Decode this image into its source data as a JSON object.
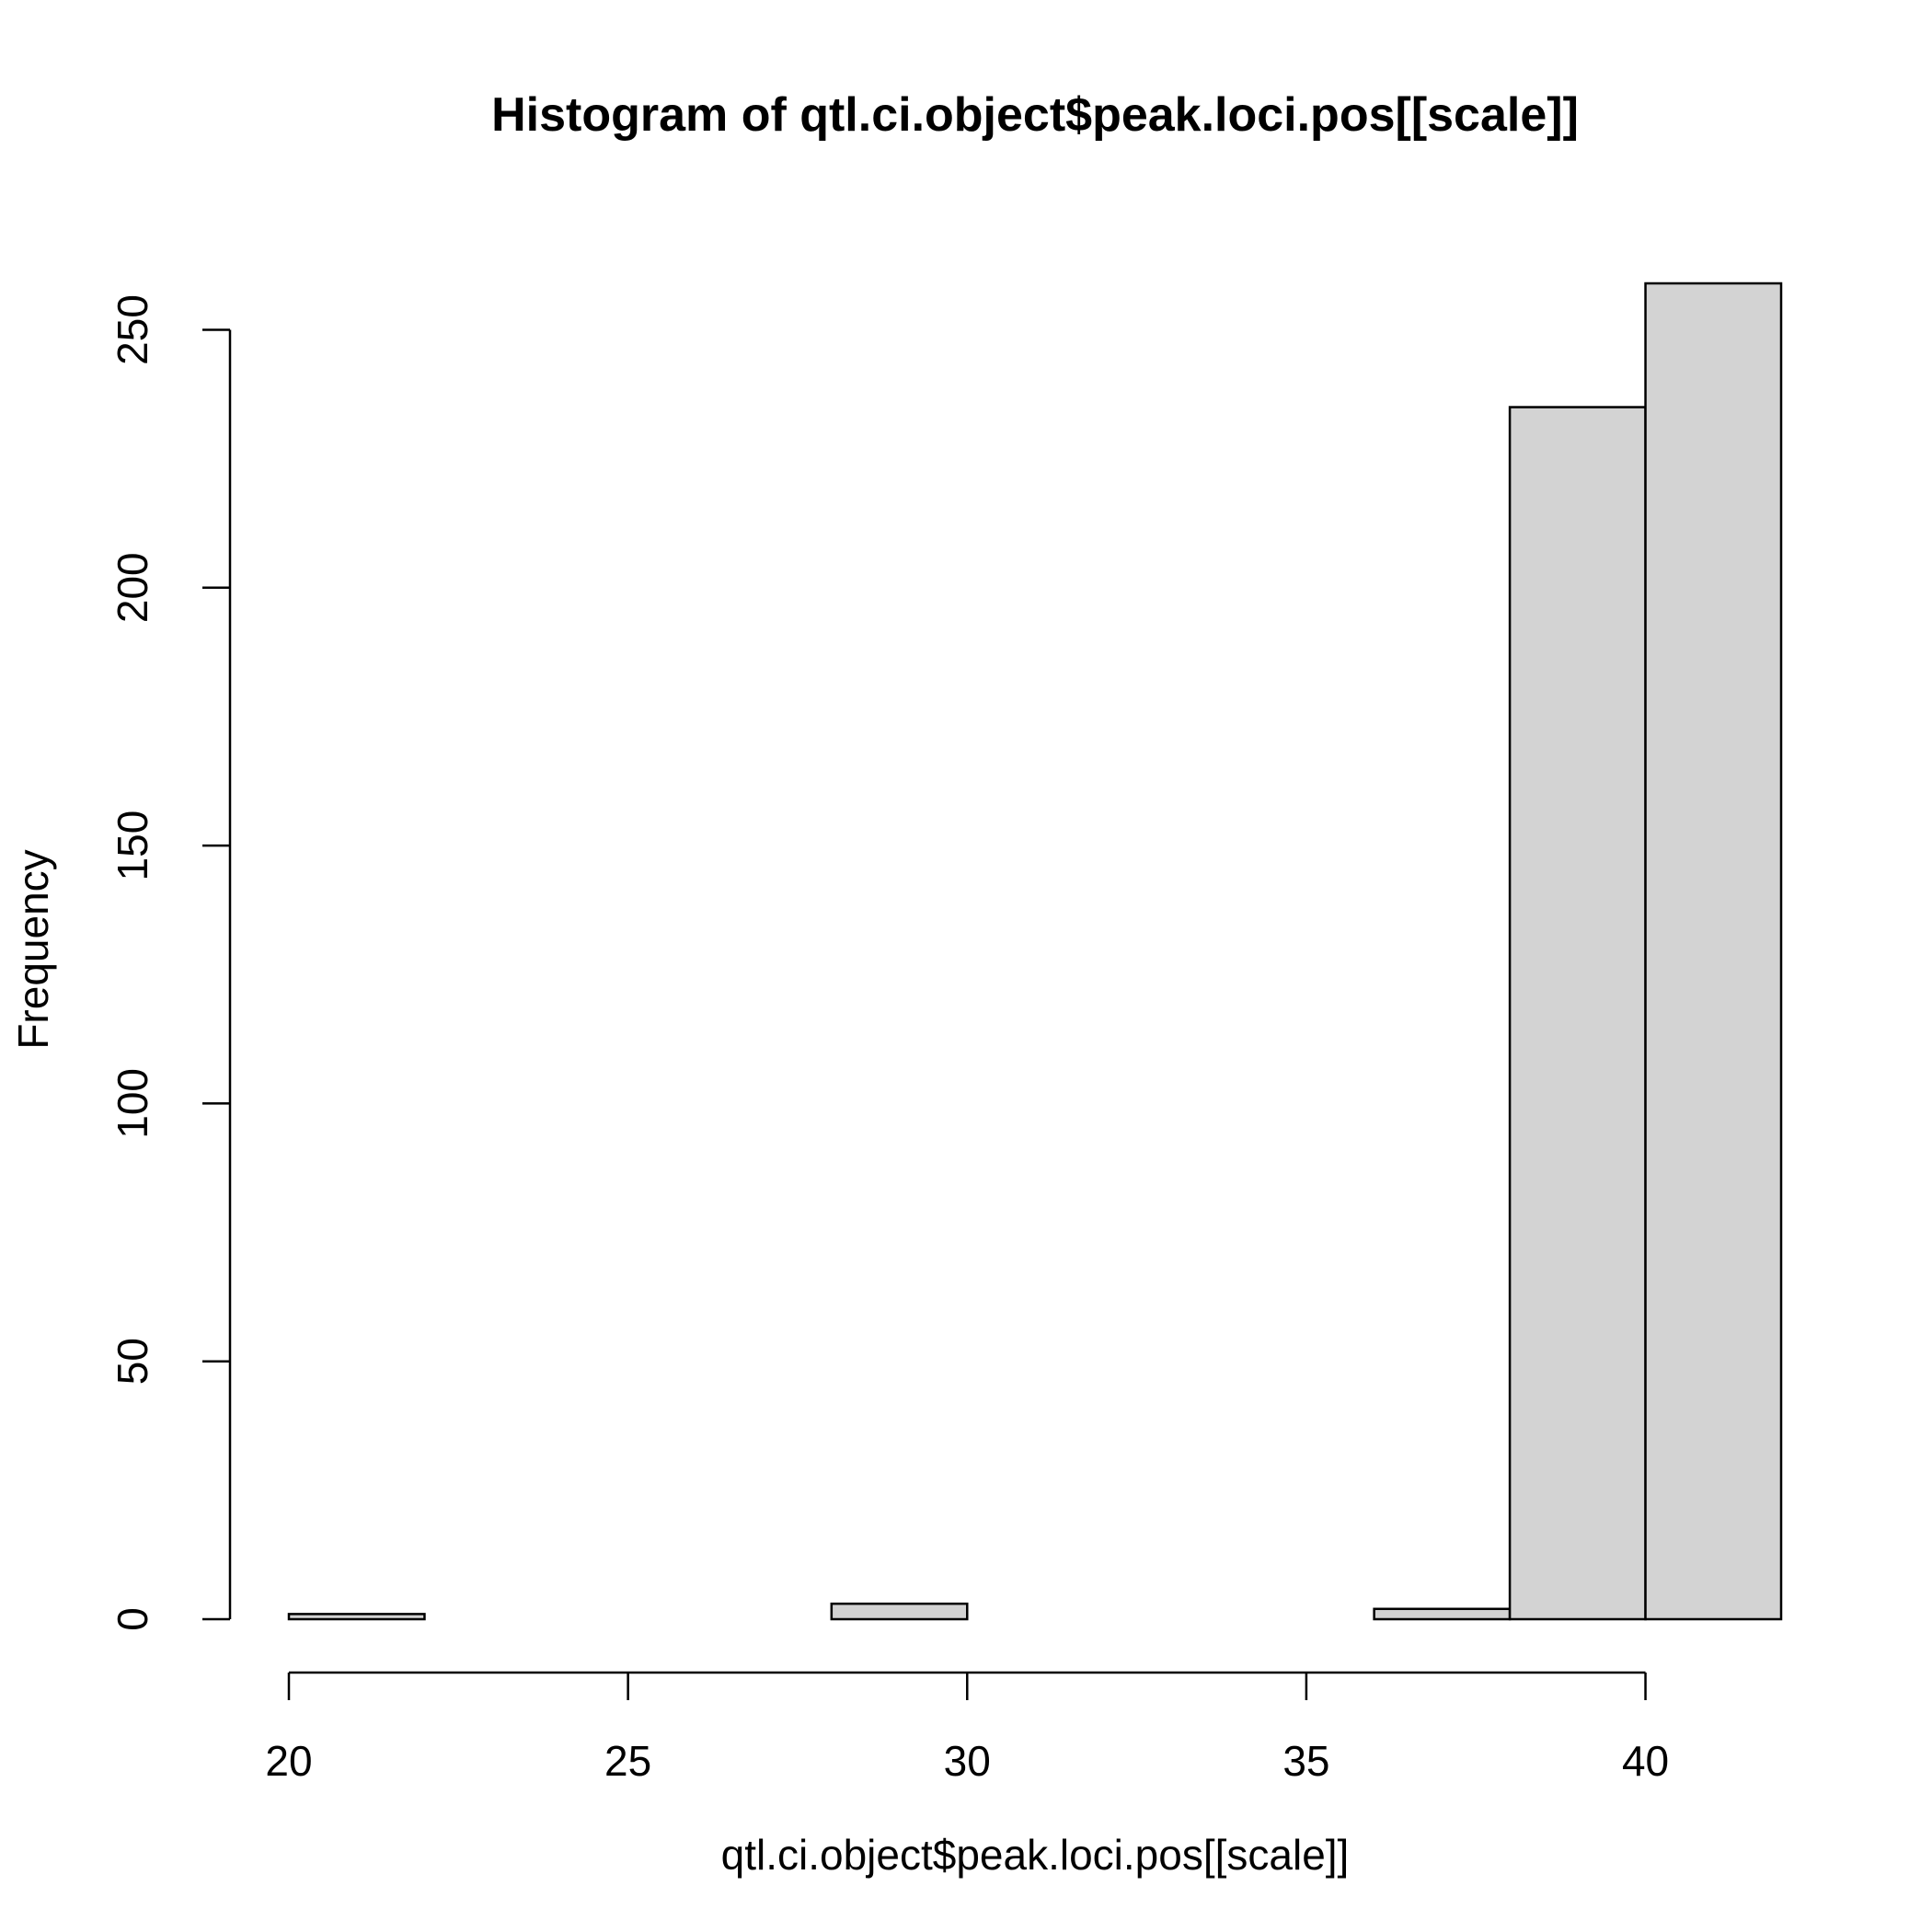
{
  "chart_data": {
    "type": "bar",
    "title": "Histogram of qtl.ci.object$peak.loci.pos[[scale]]",
    "xlabel": "qtl.ci.object$peak.loci.pos[[scale]]",
    "ylabel": "Frequency",
    "bin_edges": [
      20,
      22,
      24,
      26,
      28,
      30,
      32,
      34,
      36,
      38,
      40,
      42
    ],
    "values": [
      1,
      0,
      0,
      0,
      3,
      0,
      0,
      0,
      2,
      235,
      259
    ],
    "xlim": [
      20,
      42
    ],
    "ylim": [
      0,
      259
    ],
    "x_ticks": [
      20,
      25,
      30,
      35,
      40
    ],
    "y_ticks": [
      0,
      50,
      100,
      150,
      200,
      250
    ],
    "grid": false,
    "bar_color": "#d3d3d3",
    "edge_color": "#000000"
  }
}
